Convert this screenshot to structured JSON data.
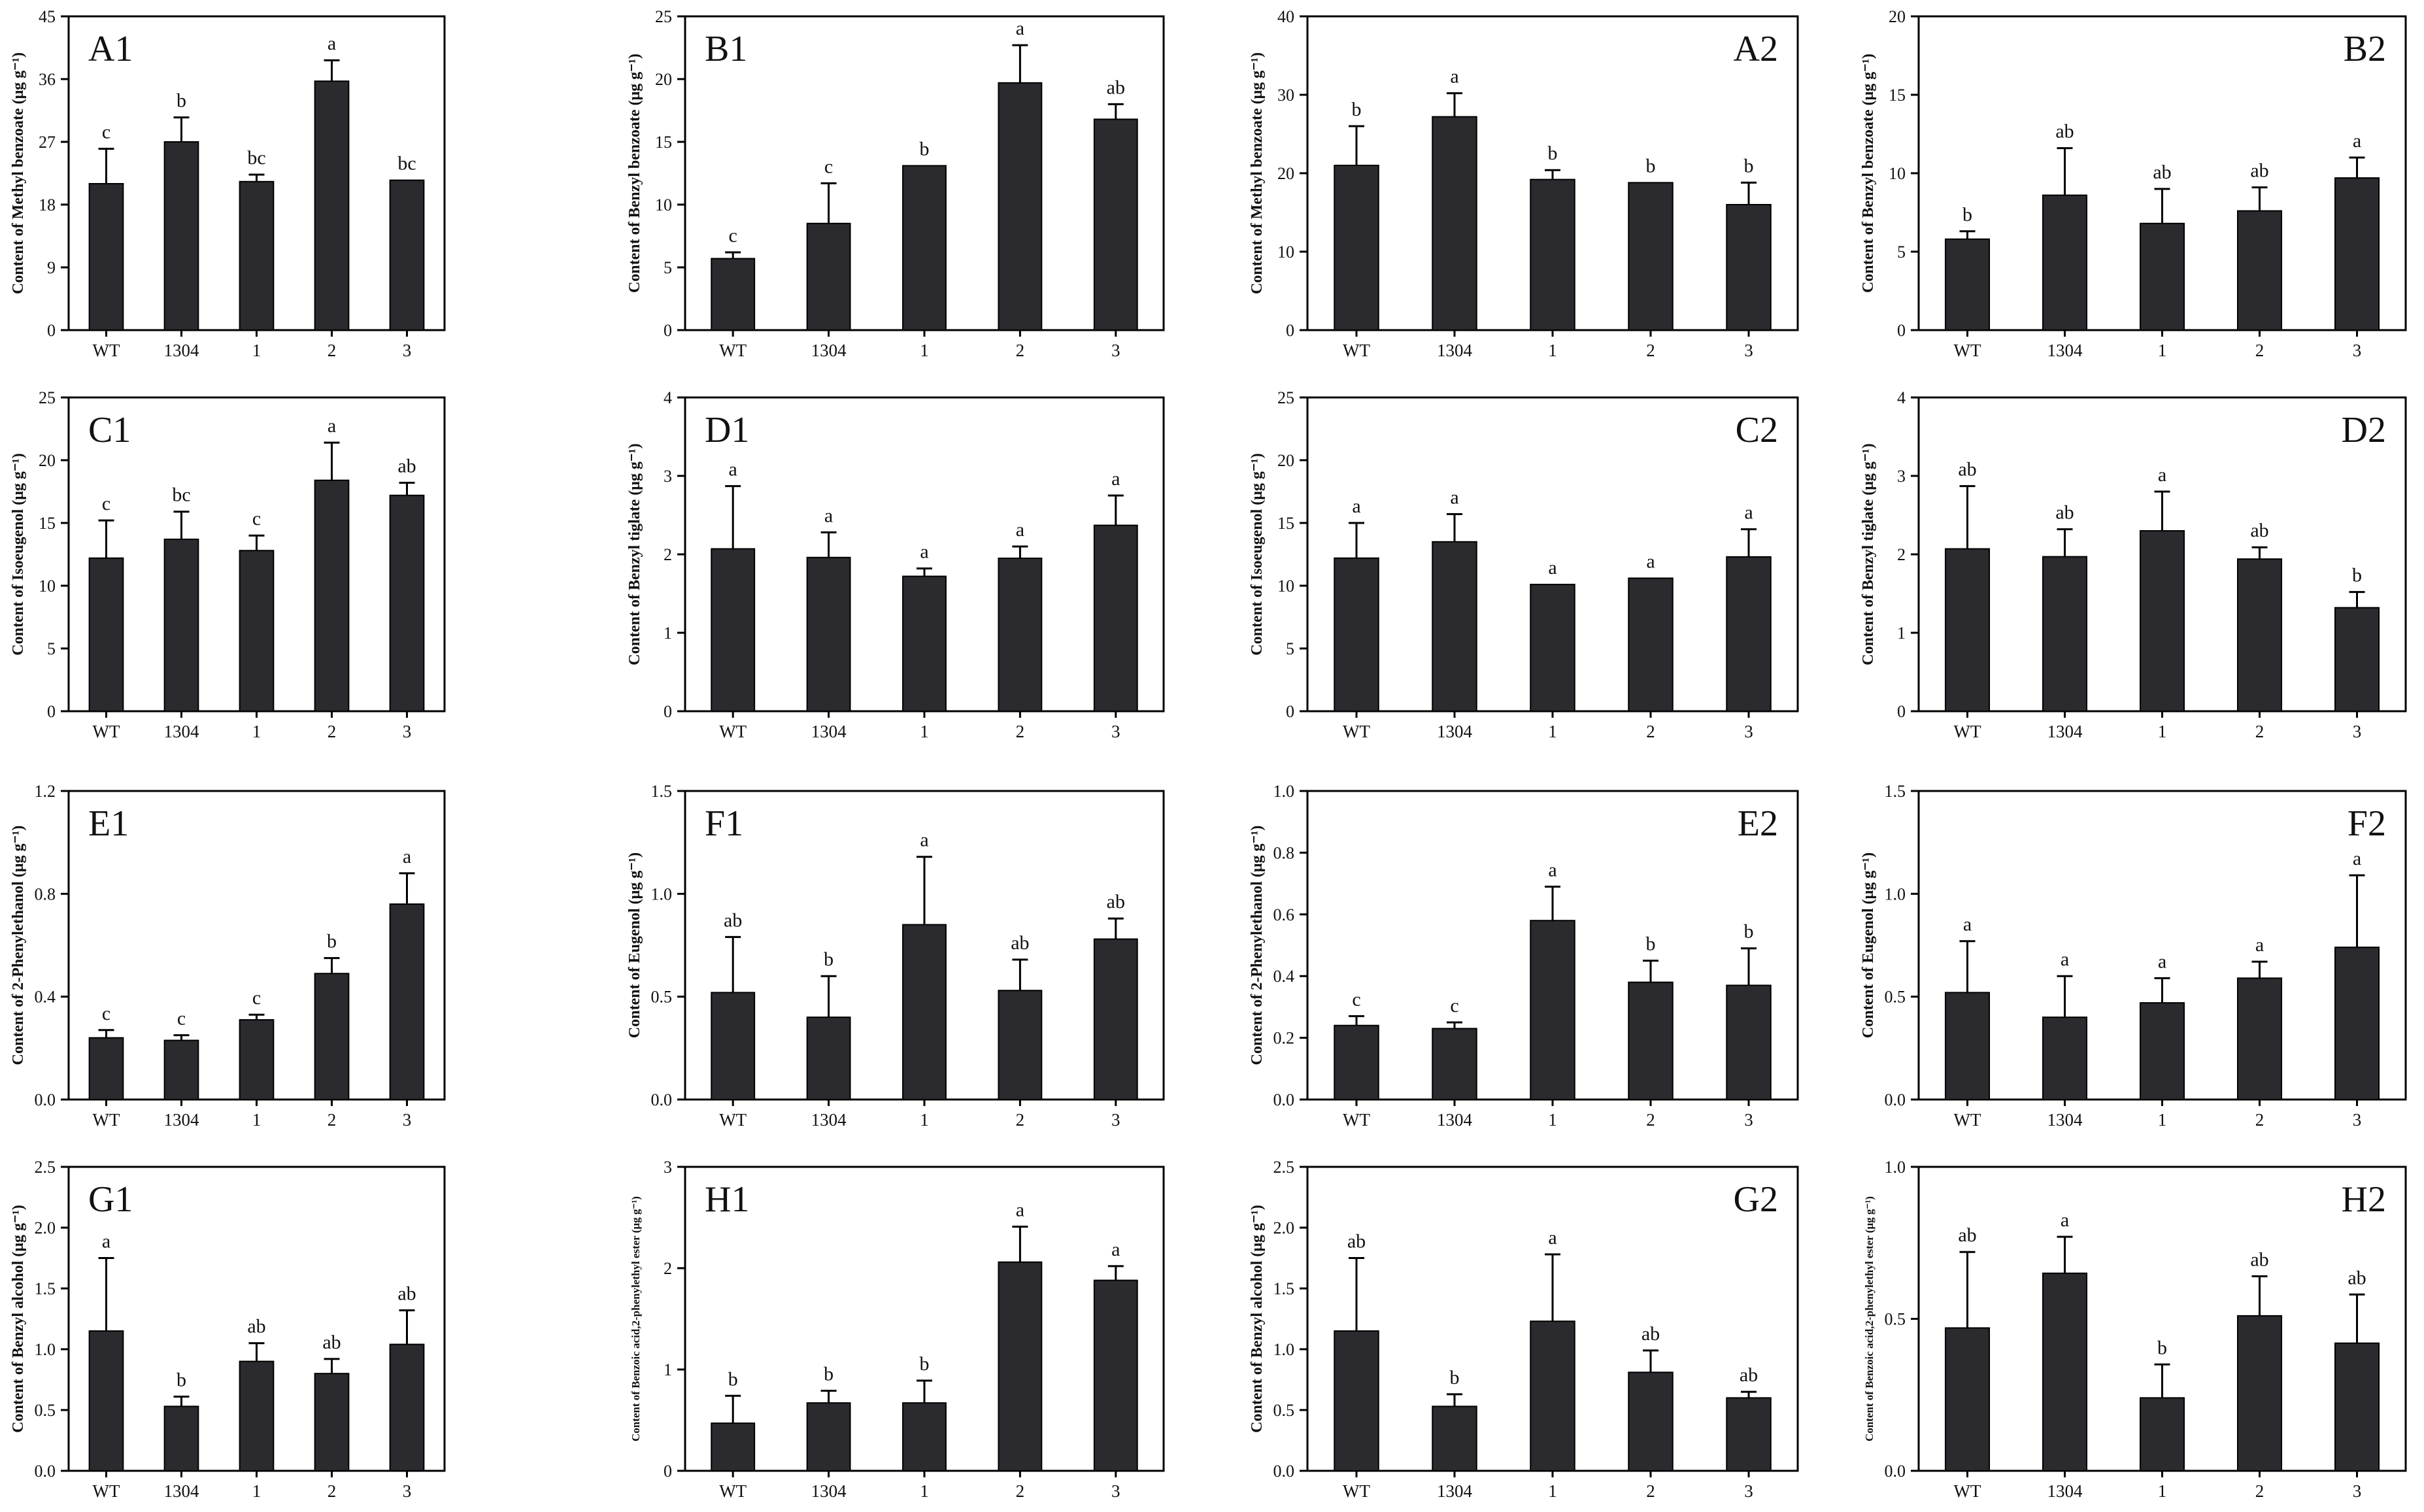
{
  "figure": {
    "background": "#ffffff",
    "bar_color": "#2b2b2f",
    "axis_color": "#000000"
  },
  "chart_data": [
    {
      "panel": "A1",
      "type": "bar",
      "categories": [
        "WT",
        "1304",
        "1",
        "2",
        "3"
      ],
      "ylabel": "Content of Methyl benzoate (μg g⁻¹)",
      "ylim": [
        0,
        45
      ],
      "yticks": [
        "0",
        "9",
        "18",
        "27",
        "36",
        "45"
      ],
      "label_position": "top-left",
      "values": [
        21,
        27,
        21.3,
        35.7,
        21.5
      ],
      "errors": [
        5,
        3.5,
        1,
        3,
        0
      ],
      "letters": [
        "c",
        "b",
        "bc",
        "a",
        "bc"
      ]
    },
    {
      "panel": "B1",
      "type": "bar",
      "categories": [
        "WT",
        "1304",
        "1",
        "2",
        "3"
      ],
      "ylabel": "Content of Benzyl benzoate (μg g⁻¹)",
      "ylim": [
        0,
        25
      ],
      "yticks": [
        "0",
        "5",
        "10",
        "15",
        "20",
        "25"
      ],
      "label_position": "top-left",
      "values": [
        5.7,
        8.5,
        13.1,
        19.7,
        16.8
      ],
      "errors": [
        0.5,
        3.2,
        0,
        3,
        1.2
      ],
      "letters": [
        "c",
        "c",
        "b",
        "a",
        "ab"
      ]
    },
    {
      "panel": "A2",
      "type": "bar",
      "categories": [
        "WT",
        "1304",
        "1",
        "2",
        "3"
      ],
      "ylabel": "Content of Methyl benzoate (μg g⁻¹)",
      "ylim": [
        0,
        40
      ],
      "yticks": [
        "0",
        "10",
        "20",
        "30",
        "40"
      ],
      "label_position": "top-right",
      "values": [
        21,
        27.2,
        19.2,
        18.8,
        16
      ],
      "errors": [
        5,
        3,
        1.2,
        0,
        2.8
      ],
      "letters": [
        "b",
        "a",
        "b",
        "b",
        "b"
      ]
    },
    {
      "panel": "B2",
      "type": "bar",
      "categories": [
        "WT",
        "1304",
        "1",
        "2",
        "3"
      ],
      "ylabel": "Content of Benzyl benzoate (μg g⁻¹)",
      "ylim": [
        0,
        20
      ],
      "yticks": [
        "0",
        "5",
        "10",
        "15",
        "20"
      ],
      "label_position": "top-right",
      "values": [
        5.8,
        8.6,
        6.8,
        7.6,
        9.7
      ],
      "errors": [
        0.5,
        3,
        2.2,
        1.5,
        1.3
      ],
      "letters": [
        "b",
        "ab",
        "ab",
        "ab",
        "a"
      ]
    },
    {
      "panel": "C1",
      "type": "bar",
      "categories": [
        "WT",
        "1304",
        "1",
        "2",
        "3"
      ],
      "ylabel": "Content of Isoeugenol (μg g⁻¹)",
      "ylim": [
        0,
        25
      ],
      "yticks": [
        "0",
        "5",
        "10",
        "15",
        "20",
        "25"
      ],
      "label_position": "top-left",
      "values": [
        12.2,
        13.7,
        12.8,
        18.4,
        17.2
      ],
      "errors": [
        3,
        2.2,
        1.2,
        3,
        1
      ],
      "letters": [
        "c",
        "bc",
        "c",
        "a",
        "ab"
      ]
    },
    {
      "panel": "D1",
      "type": "bar",
      "categories": [
        "WT",
        "1304",
        "1",
        "2",
        "3"
      ],
      "ylabel": "Content of Benzyl tiglate (μg g⁻¹)",
      "ylim": [
        0,
        4
      ],
      "yticks": [
        "0",
        "1",
        "2",
        "3",
        "4"
      ],
      "label_position": "top-left",
      "values": [
        2.07,
        1.96,
        1.72,
        1.95,
        2.37
      ],
      "errors": [
        0.8,
        0.32,
        0.1,
        0.15,
        0.38
      ],
      "letters": [
        "a",
        "a",
        "a",
        "a",
        "a"
      ]
    },
    {
      "panel": "C2",
      "type": "bar",
      "categories": [
        "WT",
        "1304",
        "1",
        "2",
        "3"
      ],
      "ylabel": "Content of Isoeugenol (μg g⁻¹)",
      "ylim": [
        0,
        25
      ],
      "yticks": [
        "0",
        "5",
        "10",
        "15",
        "20",
        "25"
      ],
      "label_position": "top-right",
      "values": [
        12.2,
        13.5,
        10.1,
        10.6,
        12.3
      ],
      "errors": [
        2.8,
        2.2,
        0,
        0,
        2.2
      ],
      "letters": [
        "a",
        "a",
        "a",
        "a",
        "a"
      ]
    },
    {
      "panel": "D2",
      "type": "bar",
      "categories": [
        "WT",
        "1304",
        "1",
        "2",
        "3"
      ],
      "ylabel": "Content of Benzyl tiglate (μg g⁻¹)",
      "ylim": [
        0,
        4
      ],
      "yticks": [
        "0",
        "1",
        "2",
        "3",
        "4"
      ],
      "label_position": "top-right",
      "values": [
        2.07,
        1.97,
        2.3,
        1.94,
        1.32
      ],
      "errors": [
        0.8,
        0.35,
        0.5,
        0.15,
        0.2
      ],
      "letters": [
        "ab",
        "ab",
        "a",
        "ab",
        "b"
      ]
    },
    {
      "panel": "E1",
      "type": "bar",
      "categories": [
        "WT",
        "1304",
        "1",
        "2",
        "3"
      ],
      "ylabel": "Content of 2-Phenylethanol (μg g⁻¹)",
      "ylim": [
        0,
        1.2
      ],
      "yticks": [
        "0.0",
        "0.4",
        "0.8",
        "1.2"
      ],
      "label_position": "top-left",
      "values": [
        0.24,
        0.23,
        0.31,
        0.49,
        0.76
      ],
      "errors": [
        0.03,
        0.02,
        0.02,
        0.06,
        0.12
      ],
      "letters": [
        "c",
        "c",
        "c",
        "b",
        "a"
      ]
    },
    {
      "panel": "F1",
      "type": "bar",
      "categories": [
        "WT",
        "1304",
        "1",
        "2",
        "3"
      ],
      "ylabel": "Content of Eugenol (μg g⁻¹)",
      "ylim": [
        0,
        1.5
      ],
      "yticks": [
        "0.0",
        "0.5",
        "1.0",
        "1.5"
      ],
      "label_position": "top-left",
      "values": [
        0.52,
        0.4,
        0.85,
        0.53,
        0.78
      ],
      "errors": [
        0.27,
        0.2,
        0.33,
        0.15,
        0.1
      ],
      "letters": [
        "ab",
        "b",
        "a",
        "ab",
        "ab"
      ]
    },
    {
      "panel": "E2",
      "type": "bar",
      "categories": [
        "WT",
        "1304",
        "1",
        "2",
        "3"
      ],
      "ylabel": "Content of 2-Phenylethanol (μg g⁻¹)",
      "ylim": [
        0,
        1.0
      ],
      "yticks": [
        "0.0",
        "0.2",
        "0.4",
        "0.6",
        "0.8",
        "1.0"
      ],
      "label_position": "top-right",
      "values": [
        0.24,
        0.23,
        0.58,
        0.38,
        0.37
      ],
      "errors": [
        0.03,
        0.02,
        0.11,
        0.07,
        0.12
      ],
      "letters": [
        "c",
        "c",
        "a",
        "b",
        "b"
      ]
    },
    {
      "panel": "F2",
      "type": "bar",
      "categories": [
        "WT",
        "1304",
        "1",
        "2",
        "3"
      ],
      "ylabel": "Content of Eugenol (μg g⁻¹)",
      "ylim": [
        0,
        1.5
      ],
      "yticks": [
        "0.0",
        "0.5",
        "1.0",
        "1.5"
      ],
      "label_position": "top-right",
      "values": [
        0.52,
        0.4,
        0.47,
        0.59,
        0.74
      ],
      "errors": [
        0.25,
        0.2,
        0.12,
        0.08,
        0.35
      ],
      "letters": [
        "a",
        "a",
        "a",
        "a",
        "a"
      ]
    },
    {
      "panel": "G1",
      "type": "bar",
      "categories": [
        "WT",
        "1304",
        "1",
        "2",
        "3"
      ],
      "ylabel": "Content of Benzyl alcohol (μg g⁻¹)",
      "ylim": [
        0,
        2.5
      ],
      "yticks": [
        "0.0",
        "0.5",
        "1.0",
        "1.5",
        "2.0",
        "2.5"
      ],
      "label_position": "top-left",
      "values": [
        1.15,
        0.53,
        0.9,
        0.8,
        1.04
      ],
      "errors": [
        0.6,
        0.08,
        0.15,
        0.12,
        0.28
      ],
      "letters": [
        "a",
        "b",
        "ab",
        "ab",
        "ab"
      ]
    },
    {
      "panel": "H1",
      "type": "bar",
      "categories": [
        "WT",
        "1304",
        "1",
        "2",
        "3"
      ],
      "ylabel": "Content of Benzoic acid,2-phenylethyl ester (μg g⁻¹)",
      "ylim": [
        0,
        3
      ],
      "yticks": [
        "0",
        "1",
        "2",
        "3"
      ],
      "label_position": "top-left",
      "values": [
        0.47,
        0.67,
        0.67,
        2.06,
        1.88
      ],
      "errors": [
        0.27,
        0.12,
        0.22,
        0.35,
        0.14
      ],
      "letters": [
        "b",
        "b",
        "b",
        "a",
        "a"
      ]
    },
    {
      "panel": "G2",
      "type": "bar",
      "categories": [
        "WT",
        "1304",
        "1",
        "2",
        "3"
      ],
      "ylabel": "Content of Benzyl alcohol (μg g⁻¹)",
      "ylim": [
        0,
        2.5
      ],
      "yticks": [
        "0.0",
        "0.5",
        "1.0",
        "1.5",
        "2.0",
        "2.5"
      ],
      "label_position": "top-right",
      "values": [
        1.15,
        0.53,
        1.23,
        0.81,
        0.6
      ],
      "errors": [
        0.6,
        0.1,
        0.55,
        0.18,
        0.05
      ],
      "letters": [
        "ab",
        "b",
        "a",
        "ab",
        "ab"
      ]
    },
    {
      "panel": "H2",
      "type": "bar",
      "categories": [
        "WT",
        "1304",
        "1",
        "2",
        "3"
      ],
      "ylabel": "Content of Benzoic acid,2-phenylethyl ester (μg g⁻¹)",
      "ylim": [
        0,
        1.0
      ],
      "yticks": [
        "0.0",
        "0.5",
        "1.0"
      ],
      "label_position": "top-right",
      "values": [
        0.47,
        0.65,
        0.24,
        0.51,
        0.42
      ],
      "errors": [
        0.25,
        0.12,
        0.11,
        0.13,
        0.16
      ],
      "letters": [
        "ab",
        "a",
        "b",
        "ab",
        "ab"
      ]
    }
  ]
}
